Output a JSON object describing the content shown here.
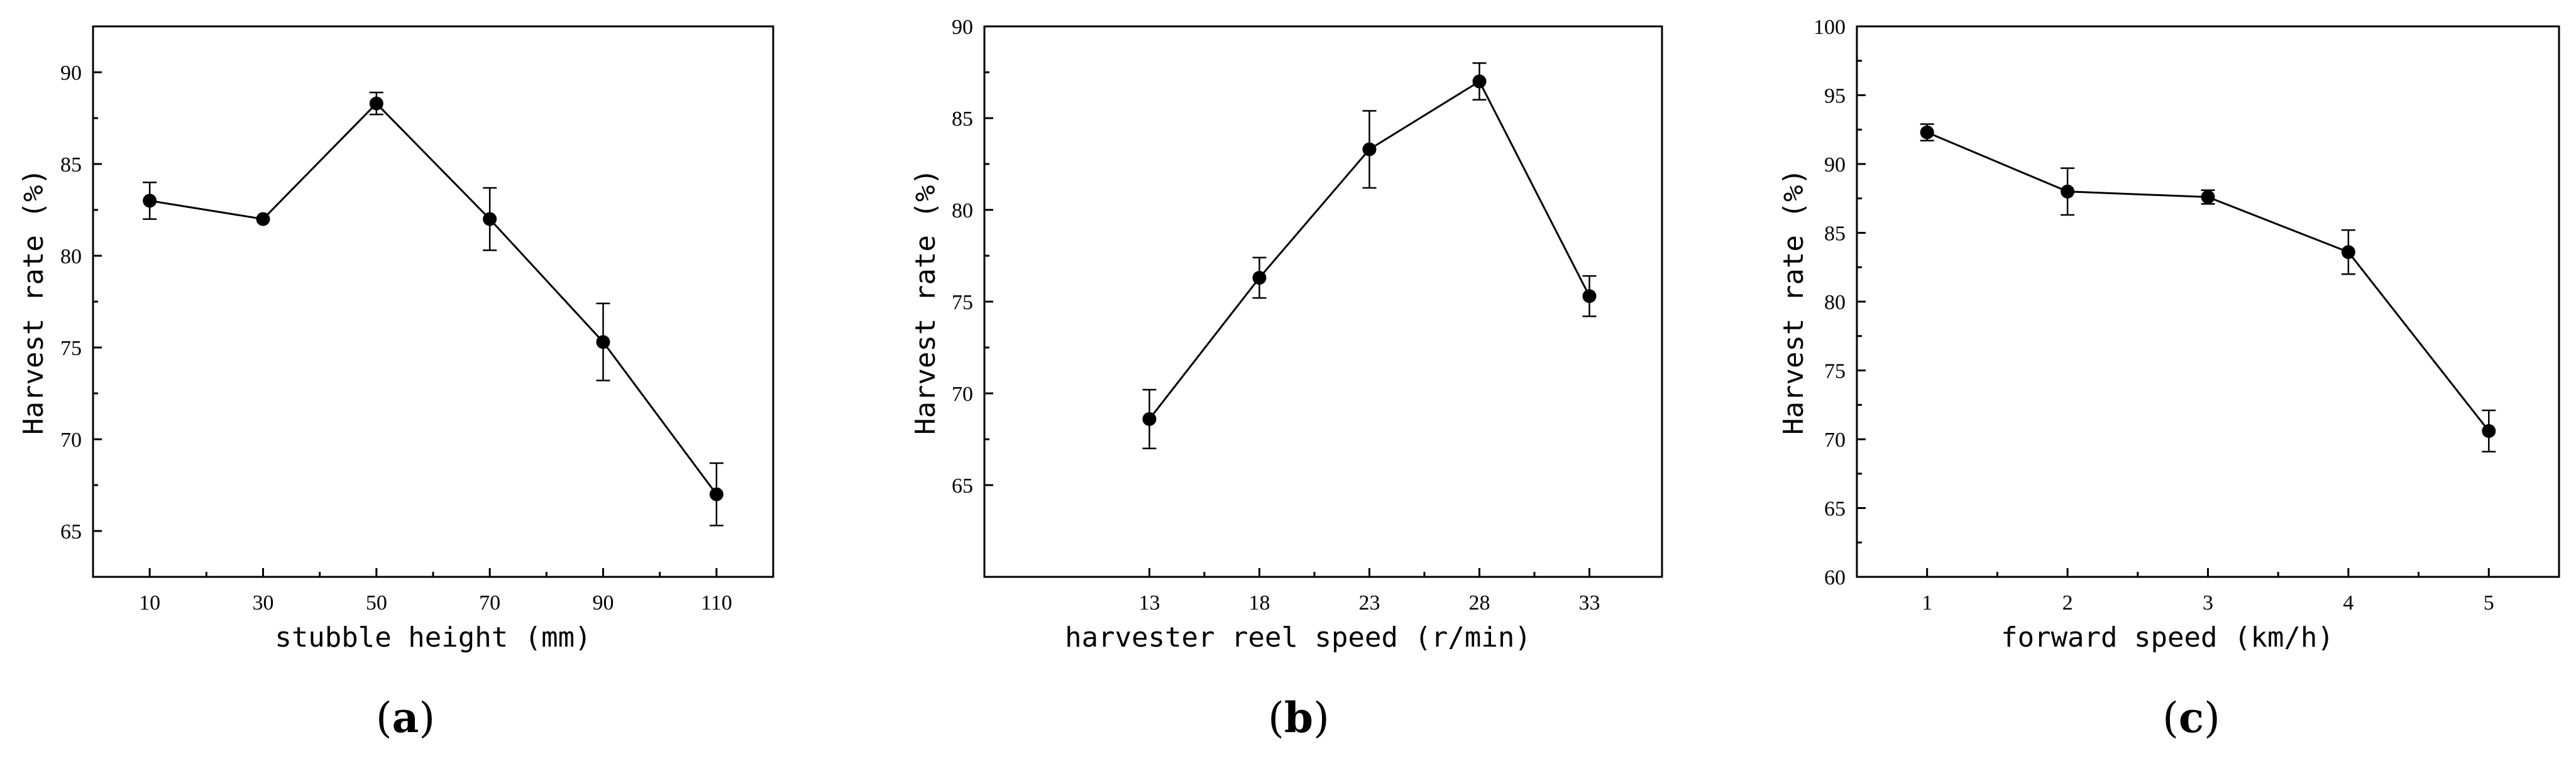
{
  "chart_data": [
    {
      "type": "line",
      "panel_label": {
        "open": "(",
        "letter": "a",
        "close": ")"
      },
      "xlabel": "stubble height (mm)",
      "ylabel": "Harvest rate (%)",
      "x": [
        10,
        30,
        50,
        70,
        90,
        110
      ],
      "x_tick_labels": [
        "10",
        "30",
        "50",
        "70",
        "90",
        "110"
      ],
      "xlim": [
        0,
        120
      ],
      "ylim": [
        62.5,
        92.5
      ],
      "y_ticks": [
        65,
        70,
        75,
        80,
        85,
        90
      ],
      "series": [
        {
          "name": "Harvest rate",
          "values": [
            83.0,
            82.0,
            88.3,
            82.0,
            75.3,
            67.0
          ],
          "error": [
            1.0,
            0.0,
            0.6,
            1.7,
            2.1,
            1.7
          ]
        }
      ]
    },
    {
      "type": "line",
      "panel_label": {
        "open": "(",
        "letter": "b",
        "close": ")"
      },
      "xlabel": "harvester reel speed (r/min)",
      "ylabel": "Harvest rate (%)",
      "x": [
        13,
        18,
        23,
        28,
        33
      ],
      "x_tick_labels": [
        "13",
        "18",
        "23",
        "28",
        "33"
      ],
      "xlim": [
        5.5,
        36.3
      ],
      "ylim": [
        60,
        90
      ],
      "y_ticks": [
        65,
        70,
        75,
        80,
        85,
        90
      ],
      "series": [
        {
          "name": "Harvest rate",
          "values": [
            68.6,
            76.3,
            83.3,
            87.0,
            75.3
          ],
          "error": [
            1.6,
            1.1,
            2.1,
            1.0,
            1.1
          ]
        }
      ]
    },
    {
      "type": "line",
      "panel_label": {
        "open": "(",
        "letter": "c",
        "close": ")"
      },
      "xlabel": "forward speed (km/h)",
      "ylabel": "Harvest rate (%)",
      "x": [
        1,
        2,
        3,
        4,
        5
      ],
      "x_tick_labels": [
        "1",
        "2",
        "3",
        "4",
        "5"
      ],
      "xlim": [
        0.5,
        5.5
      ],
      "ylim": [
        60,
        100
      ],
      "y_ticks": [
        60,
        65,
        70,
        75,
        80,
        85,
        90,
        95,
        100
      ],
      "series": [
        {
          "name": "Harvest rate",
          "values": [
            92.3,
            88.0,
            87.6,
            83.6,
            70.6
          ],
          "error": [
            0.6,
            1.7,
            0.5,
            1.6,
            1.5
          ]
        }
      ]
    }
  ]
}
